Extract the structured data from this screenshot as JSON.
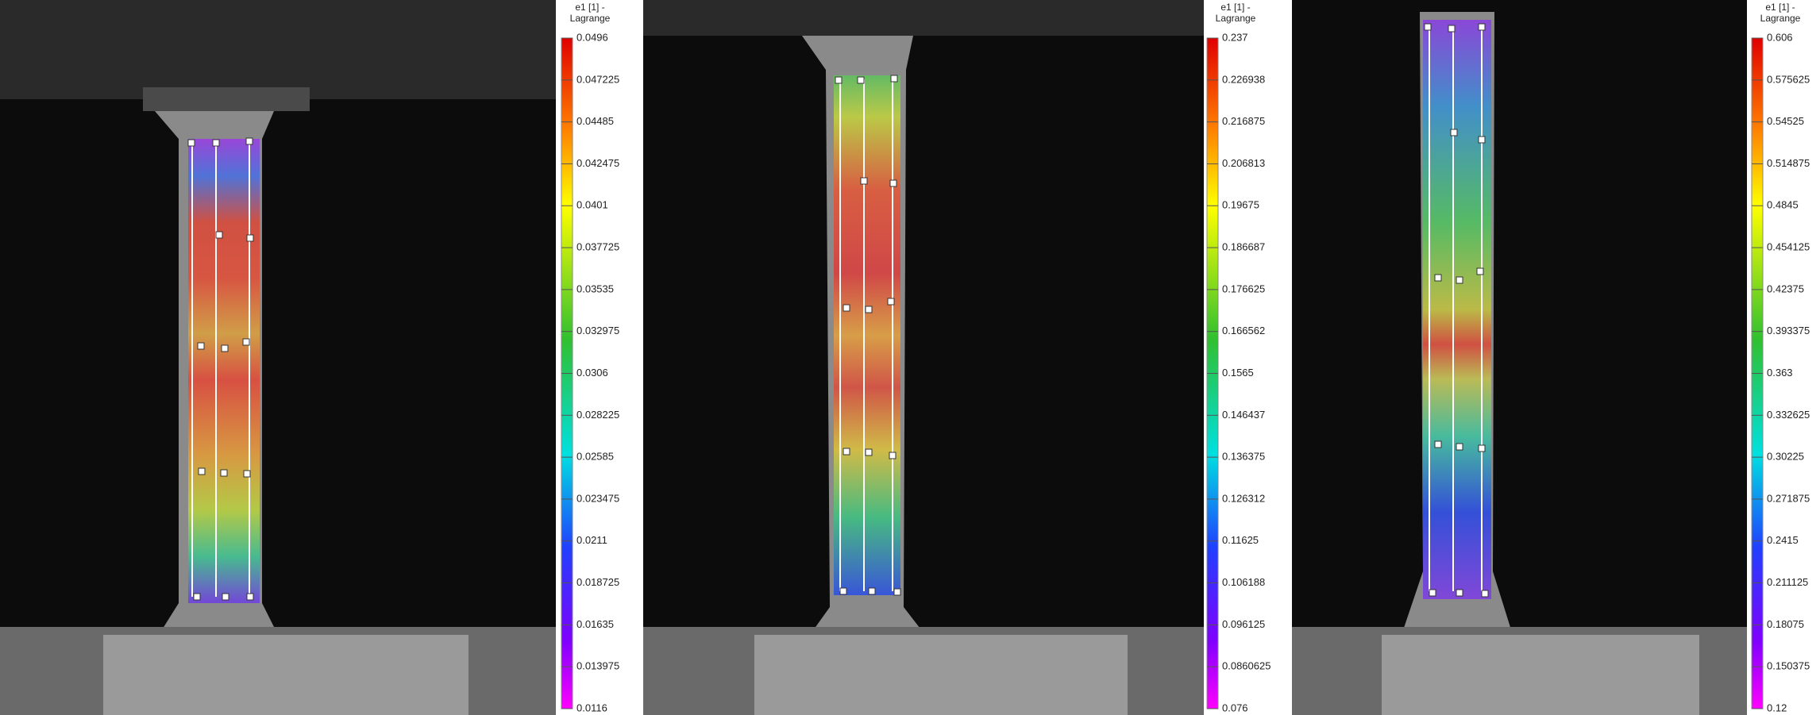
{
  "panels": [
    {
      "colorbar": {
        "title": [
          "e1 [1] -",
          "Lagrange"
        ],
        "ticks": [
          0.0496,
          0.047225,
          0.04485,
          0.042475,
          0.0401,
          0.037725,
          0.03535,
          0.032975,
          0.0306,
          0.028225,
          0.02585,
          0.023475,
          0.0211,
          0.018725,
          0.01635,
          0.013975,
          0.0116
        ]
      }
    },
    {
      "colorbar": {
        "title": [
          "e1 [1] -",
          "Lagrange"
        ],
        "ticks": [
          0.237,
          0.226938,
          0.216875,
          0.206813,
          0.19675,
          0.186687,
          0.176625,
          0.166562,
          0.1565,
          0.146437,
          0.136375,
          0.126312,
          0.11625,
          0.106188,
          0.096125,
          0.0860625,
          0.076
        ]
      }
    },
    {
      "colorbar": {
        "title": [
          "e1 [1] -",
          "Lagrange"
        ],
        "ticks": [
          0.606,
          0.575625,
          0.54525,
          0.514875,
          0.4845,
          0.454125,
          0.42375,
          0.393375,
          0.363,
          0.332625,
          0.30225,
          0.271875,
          0.2415,
          0.211125,
          0.18075,
          0.150375,
          0.12
        ]
      }
    }
  ]
}
